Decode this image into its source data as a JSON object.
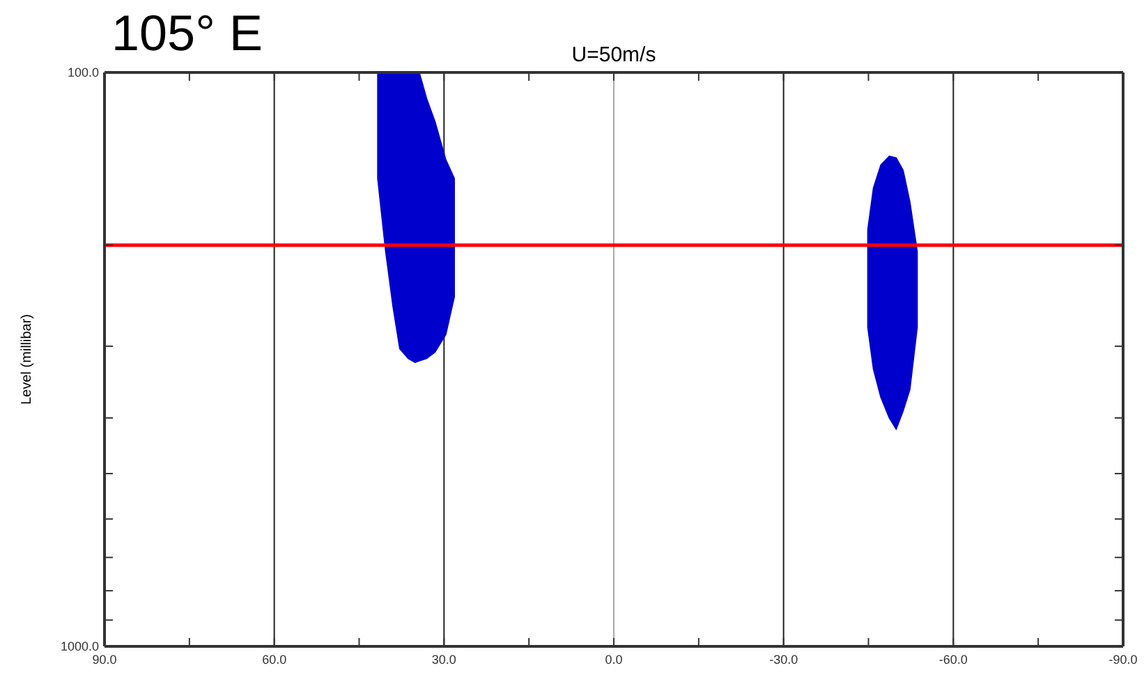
{
  "chart_data": {
    "type": "area",
    "title": "U=50m/s",
    "ylabel": "Level (millibar)",
    "annotations": [
      "105° E"
    ],
    "xlim": [
      90,
      -90
    ],
    "xticks": [
      {
        "value": 90,
        "label": "90.0"
      },
      {
        "value": 75,
        "label": null
      },
      {
        "value": 60,
        "label": "60.0"
      },
      {
        "value": 45,
        "label": null
      },
      {
        "value": 30,
        "label": "30.0"
      },
      {
        "value": 15,
        "label": null
      },
      {
        "value": 0,
        "label": "0.0"
      },
      {
        "value": -15,
        "label": null
      },
      {
        "value": -30,
        "label": "-30.0"
      },
      {
        "value": -45,
        "label": null
      },
      {
        "value": -60,
        "label": "-60.0"
      },
      {
        "value": -75,
        "label": null
      },
      {
        "value": -90,
        "label": "-90.0"
      }
    ],
    "ylim": [
      1000,
      100
    ],
    "log": "y",
    "yticks": [
      {
        "value": 100,
        "label": "100.0"
      },
      {
        "value": 200,
        "label": null
      },
      {
        "value": 300,
        "label": null
      },
      {
        "value": 400,
        "label": null
      },
      {
        "value": 500,
        "label": null
      },
      {
        "value": 600,
        "label": null
      },
      {
        "value": 700,
        "label": null
      },
      {
        "value": 800,
        "label": null
      },
      {
        "value": 900,
        "label": null
      },
      {
        "value": 1000,
        "label": "1000.0"
      }
    ],
    "grid": "x",
    "ref_lines": [
      {
        "axis": "y",
        "value": 200,
        "color": "#ff0000"
      }
    ],
    "series": [
      {
        "color": "#0000cc",
        "x": [
          41.7,
          40.3,
          39.0,
          37.8,
          36.3,
          35.1,
          34.4,
          33.1,
          31.6,
          29.7,
          28.2,
          28.2,
          29.7,
          31.6,
          33.1,
          34.4,
          35.1,
          36.3,
          37.8,
          39.0,
          40.3,
          41.7
        ],
        "values": [
          153,
          205,
          256,
          303,
          315,
          320,
          318,
          315,
          307,
          286,
          246,
          153,
          142,
          122,
          111,
          100,
          100,
          100,
          100,
          100,
          100,
          100
        ]
      },
      {
        "color": "#0000cc",
        "x": [
          -44.9,
          -45.9,
          -47.2,
          -48.7,
          -49.9,
          -51.1,
          -52.3,
          -53.6,
          -53.6,
          -52.3,
          -51.1,
          -49.9,
          -48.7,
          -47.2,
          -45.9,
          -44.9
        ],
        "values": [
          278,
          329,
          368,
          400,
          418,
          389,
          357,
          278,
          205,
          168,
          148,
          141,
          140,
          145,
          159,
          188
        ]
      }
    ]
  }
}
